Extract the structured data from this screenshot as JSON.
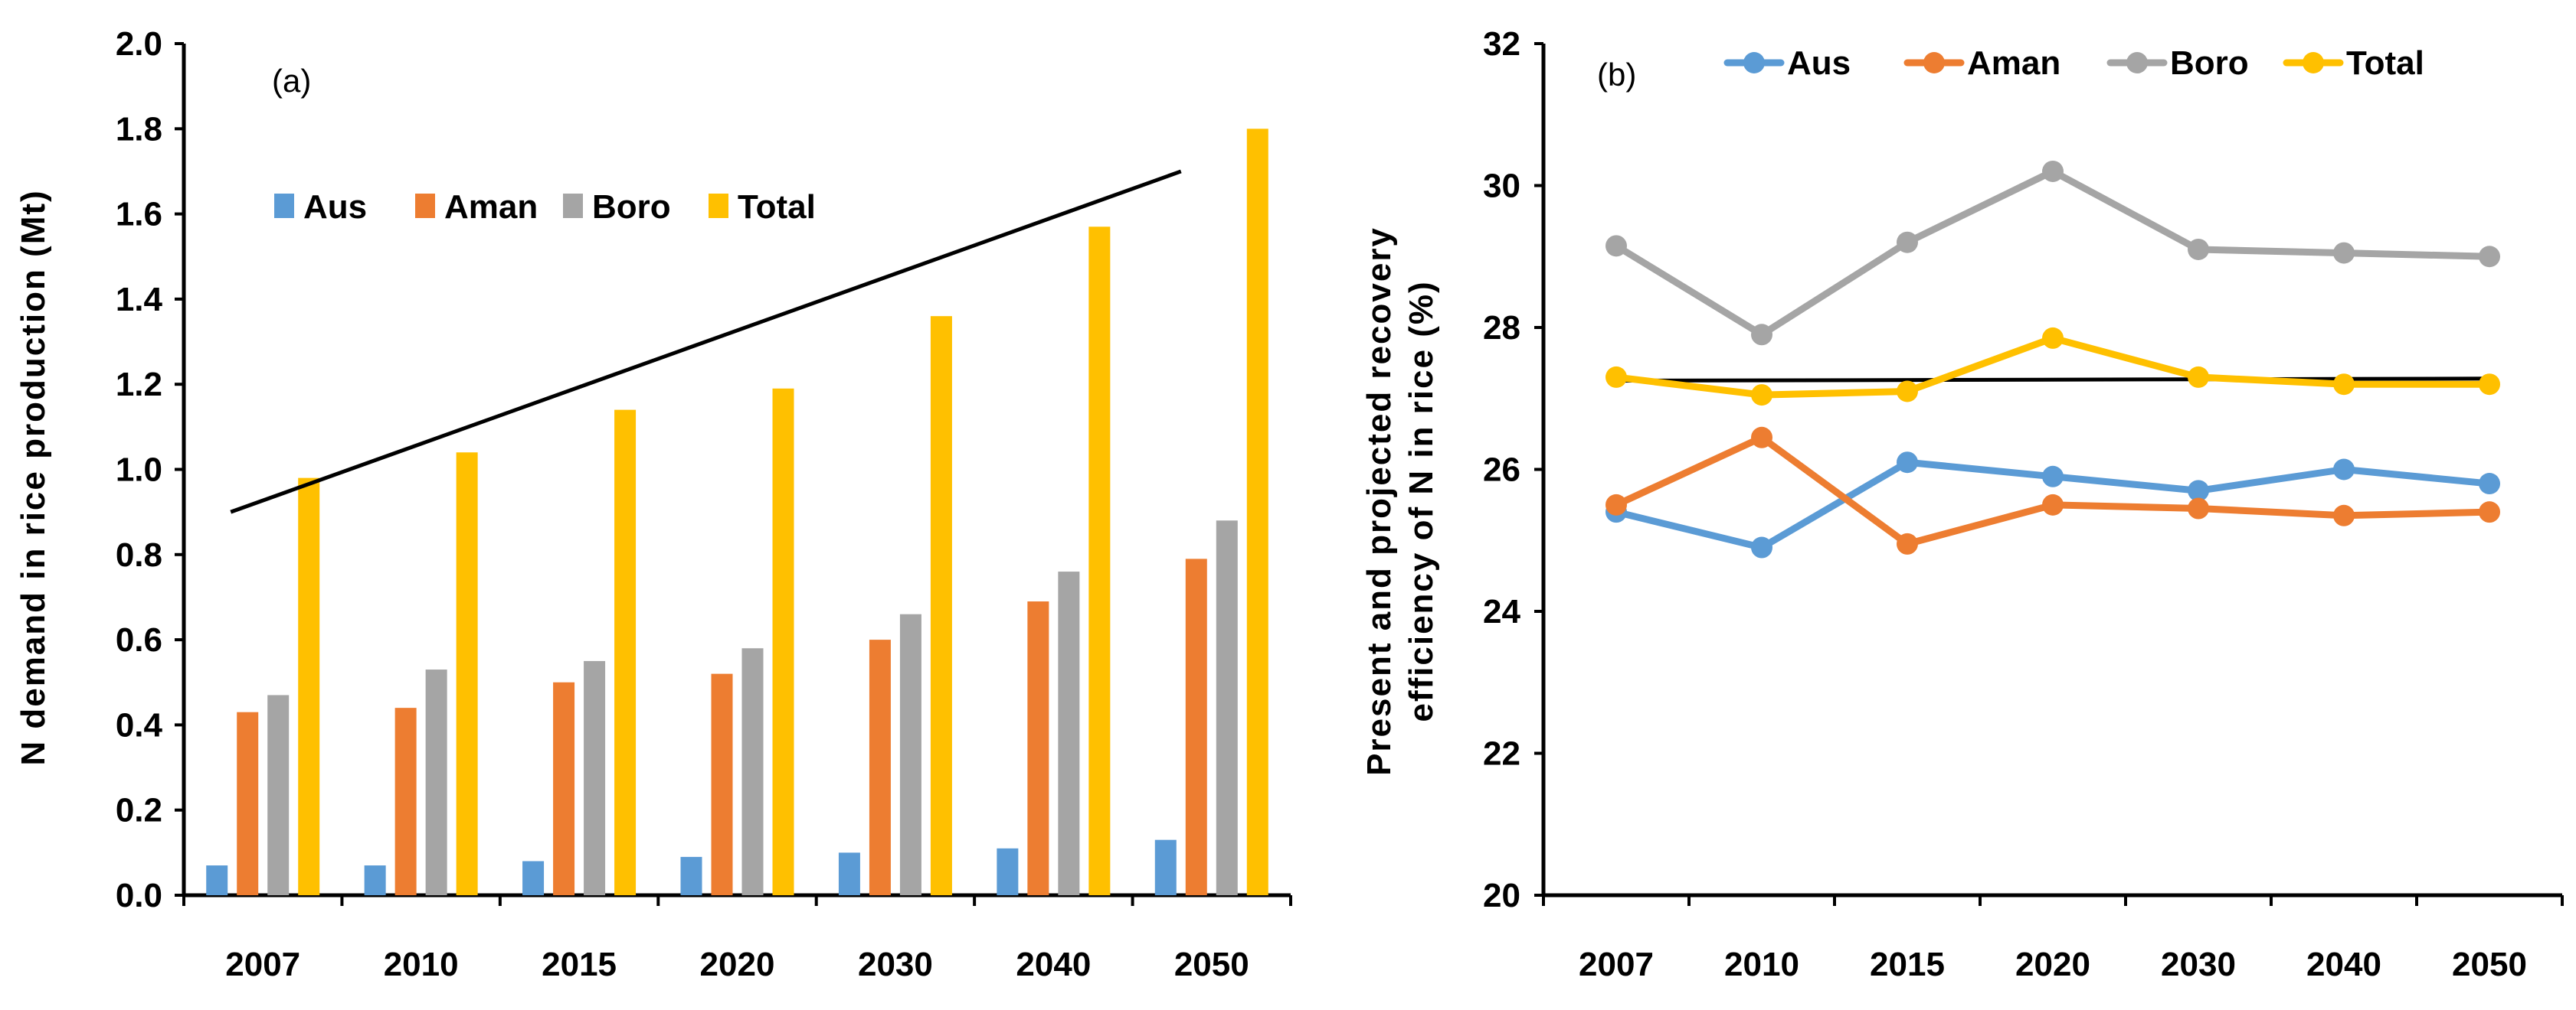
{
  "chart_data": [
    {
      "type": "bar",
      "panel_label": "(a)",
      "categories": [
        "2007",
        "2010",
        "2015",
        "2020",
        "2030",
        "2040",
        "2050"
      ],
      "series": [
        {
          "name": "Aus",
          "color": "#5B9BD5",
          "values": [
            0.07,
            0.07,
            0.08,
            0.09,
            0.1,
            0.11,
            0.13
          ]
        },
        {
          "name": "Aman",
          "color": "#ED7D31",
          "values": [
            0.43,
            0.44,
            0.5,
            0.52,
            0.6,
            0.69,
            0.79
          ]
        },
        {
          "name": "Boro",
          "color": "#A5A5A5",
          "values": [
            0.47,
            0.53,
            0.55,
            0.58,
            0.66,
            0.76,
            0.88
          ]
        },
        {
          "name": "Total",
          "color": "#FFC000",
          "values": [
            0.98,
            1.04,
            1.14,
            1.19,
            1.36,
            1.57,
            1.8
          ]
        }
      ],
      "trendline": {
        "start": 0.9,
        "end": 1.7
      },
      "ylabel": "N demand in rice production  (Mt)",
      "ylim": [
        0,
        2.0
      ],
      "yticks": [
        "0.0",
        "0.2",
        "0.4",
        "0.6",
        "0.8",
        "1.0",
        "1.2",
        "1.4",
        "1.6",
        "1.8",
        "2.0"
      ],
      "legend_position": "upper-left",
      "grid": false
    },
    {
      "type": "line",
      "panel_label": "(b)",
      "categories": [
        "2007",
        "2010",
        "2015",
        "2020",
        "2030",
        "2040",
        "2050"
      ],
      "series": [
        {
          "name": "Aus",
          "color": "#5B9BD5",
          "values": [
            25.4,
            24.9,
            26.1,
            25.9,
            25.7,
            26.0,
            25.8
          ]
        },
        {
          "name": "Aman",
          "color": "#ED7D31",
          "values": [
            25.5,
            26.45,
            24.95,
            25.5,
            25.45,
            25.35,
            25.4
          ]
        },
        {
          "name": "Boro",
          "color": "#A5A5A5",
          "values": [
            29.15,
            27.9,
            29.2,
            30.2,
            29.1,
            29.05,
            29.0
          ]
        },
        {
          "name": "Total",
          "color": "#FFC000",
          "values": [
            27.3,
            27.05,
            27.1,
            27.85,
            27.3,
            27.2,
            27.2
          ]
        }
      ],
      "trendline": {
        "start": 27.25,
        "end": 27.28
      },
      "ylabel_line1": "Present and projected recovery",
      "ylabel_line2": "efficiency of N in rice (%)",
      "ylim": [
        20,
        32
      ],
      "yticks": [
        "20",
        "22",
        "24",
        "26",
        "28",
        "30",
        "32"
      ],
      "legend_position": "top",
      "grid": false
    }
  ]
}
